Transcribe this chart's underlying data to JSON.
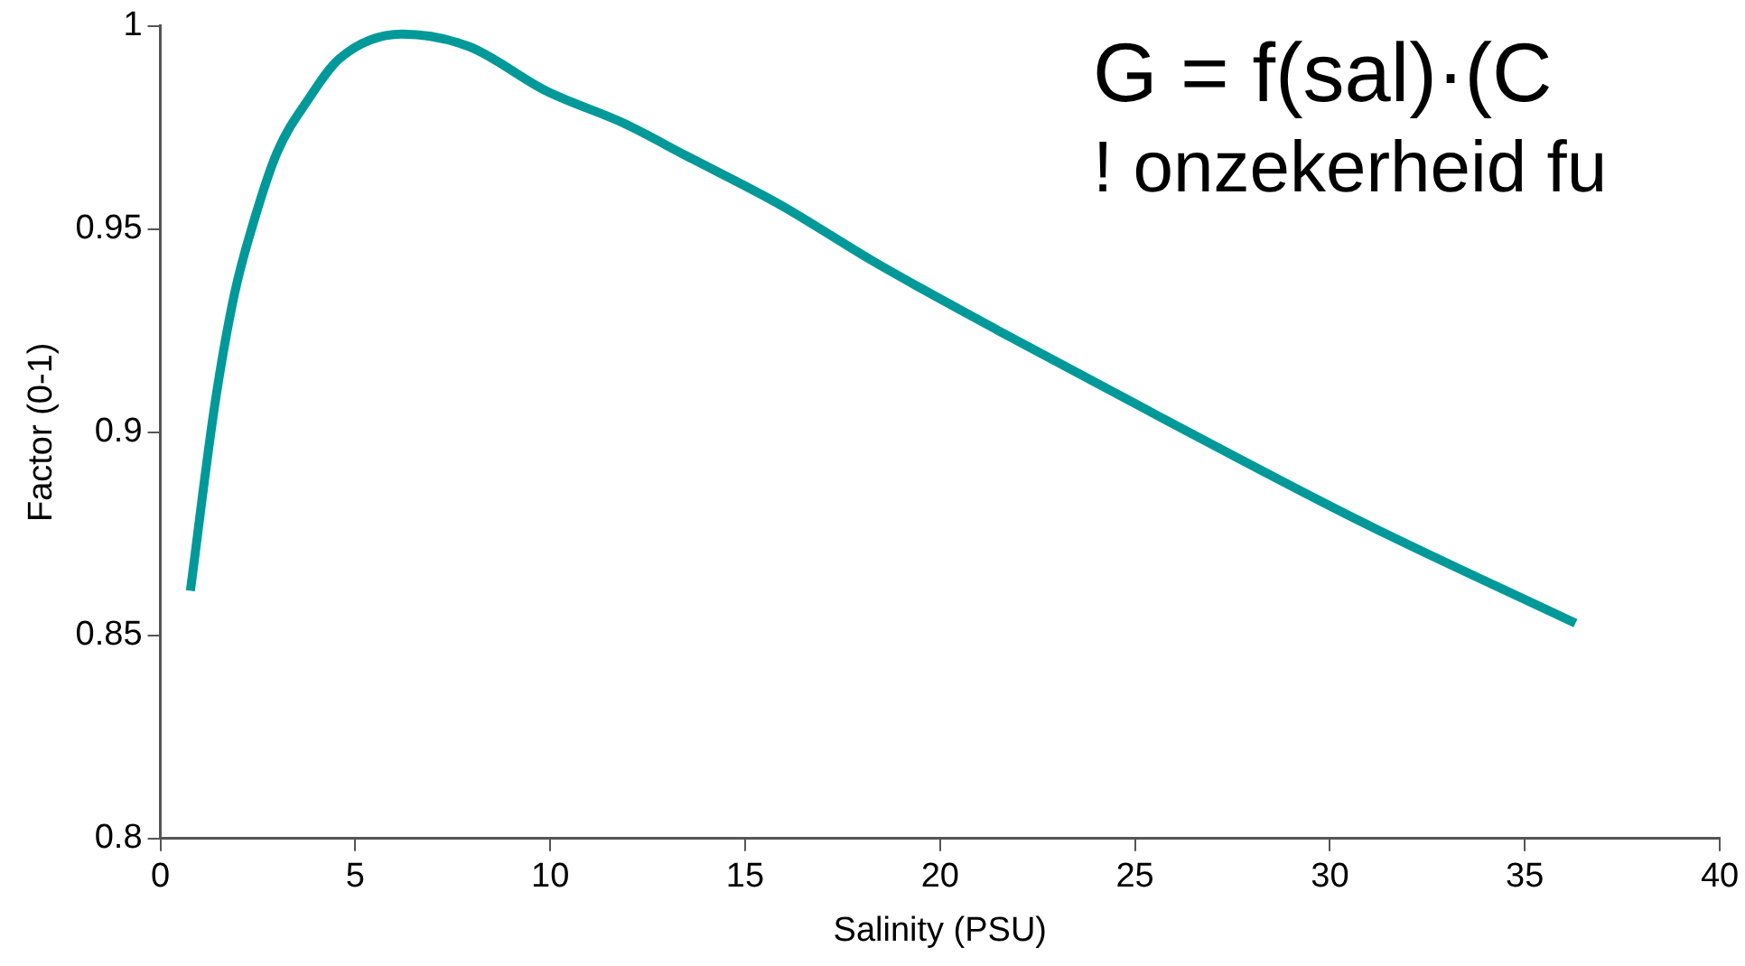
{
  "chart_data": {
    "type": "line",
    "xlabel": "Salinity (PSU)",
    "ylabel": "Factor (0-1)",
    "annotations": [
      "G = f(sal)·(C",
      "! onzekerheid fu"
    ],
    "x": [
      0.77,
      1.4,
      1.9,
      2.4,
      3.0,
      3.8,
      4.6,
      6.2,
      7.9,
      9.9,
      11.9,
      13.5,
      15.9,
      18.3,
      21.5,
      25.6,
      30.8,
      36.3
    ],
    "series": [
      {
        "color": "#009999",
        "values": [
          0.861,
          0.907,
          0.934,
          0.952,
          0.969,
          0.982,
          0.992,
          0.998,
          0.995,
          0.984,
          0.976,
          0.968,
          0.956,
          0.942,
          0.925,
          0.904,
          0.878,
          0.853
        ]
      }
    ],
    "xlim": [
      0,
      40
    ],
    "xticks": [
      0,
      5,
      10,
      15,
      20,
      25,
      30,
      35,
      40
    ],
    "ylim": [
      0.8,
      1
    ],
    "yticks": [
      0.8,
      0.85,
      0.9,
      0.95,
      1
    ],
    "grid": false,
    "legend": false,
    "marker": "none",
    "line_style": "solid"
  }
}
